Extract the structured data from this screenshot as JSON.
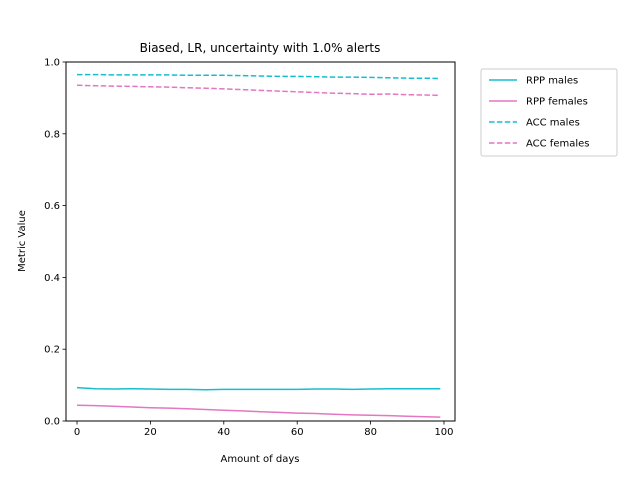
{
  "chart_data": {
    "type": "line",
    "title": "Biased, LR, uncertainty with 1.0% alerts",
    "xlabel": "Amount of days",
    "ylabel": "Metric Value",
    "xlim": [
      -3,
      103
    ],
    "ylim": [
      0.0,
      1.0
    ],
    "xticks": [
      0,
      20,
      40,
      60,
      80,
      100
    ],
    "xtick_labels": [
      "0",
      "20",
      "40",
      "60",
      "80",
      "100"
    ],
    "yticks": [
      0.0,
      0.2,
      0.4,
      0.6,
      0.8,
      1.0
    ],
    "ytick_labels": [
      "0.0",
      "0.2",
      "0.4",
      "0.6",
      "0.8",
      "1.0"
    ],
    "grid": false,
    "legend_position": "outside-top-right",
    "series": [
      {
        "name": "RPP males",
        "color": "#17becf",
        "dash": "solid",
        "x": [
          0,
          5,
          10,
          15,
          20,
          25,
          30,
          35,
          40,
          45,
          50,
          55,
          60,
          65,
          70,
          75,
          80,
          85,
          90,
          95,
          99
        ],
        "y": [
          0.093,
          0.09,
          0.089,
          0.09,
          0.089,
          0.088,
          0.088,
          0.087,
          0.088,
          0.088,
          0.088,
          0.088,
          0.088,
          0.089,
          0.089,
          0.088,
          0.089,
          0.09,
          0.09,
          0.09,
          0.09
        ]
      },
      {
        "name": "RPP females",
        "color": "#e377c2",
        "dash": "solid",
        "x": [
          0,
          5,
          10,
          15,
          20,
          25,
          30,
          35,
          40,
          45,
          50,
          55,
          60,
          65,
          70,
          75,
          80,
          85,
          90,
          95,
          99
        ],
        "y": [
          0.044,
          0.043,
          0.041,
          0.039,
          0.037,
          0.036,
          0.034,
          0.032,
          0.03,
          0.028,
          0.026,
          0.024,
          0.022,
          0.021,
          0.019,
          0.017,
          0.016,
          0.015,
          0.013,
          0.012,
          0.011
        ]
      },
      {
        "name": "ACC males",
        "color": "#17becf",
        "dash": "dashed",
        "x": [
          0,
          5,
          10,
          15,
          20,
          25,
          30,
          35,
          40,
          45,
          50,
          55,
          60,
          65,
          70,
          75,
          80,
          85,
          90,
          95,
          99
        ],
        "y": [
          0.965,
          0.965,
          0.964,
          0.964,
          0.964,
          0.964,
          0.963,
          0.963,
          0.963,
          0.962,
          0.961,
          0.96,
          0.96,
          0.959,
          0.958,
          0.958,
          0.957,
          0.956,
          0.955,
          0.955,
          0.954
        ]
      },
      {
        "name": "ACC females",
        "color": "#e377c2",
        "dash": "dashed",
        "x": [
          0,
          5,
          10,
          15,
          20,
          25,
          30,
          35,
          40,
          45,
          50,
          55,
          60,
          65,
          70,
          75,
          80,
          85,
          90,
          95,
          99
        ],
        "y": [
          0.935,
          0.934,
          0.933,
          0.932,
          0.931,
          0.93,
          0.928,
          0.927,
          0.925,
          0.923,
          0.921,
          0.919,
          0.917,
          0.915,
          0.913,
          0.912,
          0.91,
          0.911,
          0.909,
          0.908,
          0.907
        ]
      }
    ]
  }
}
